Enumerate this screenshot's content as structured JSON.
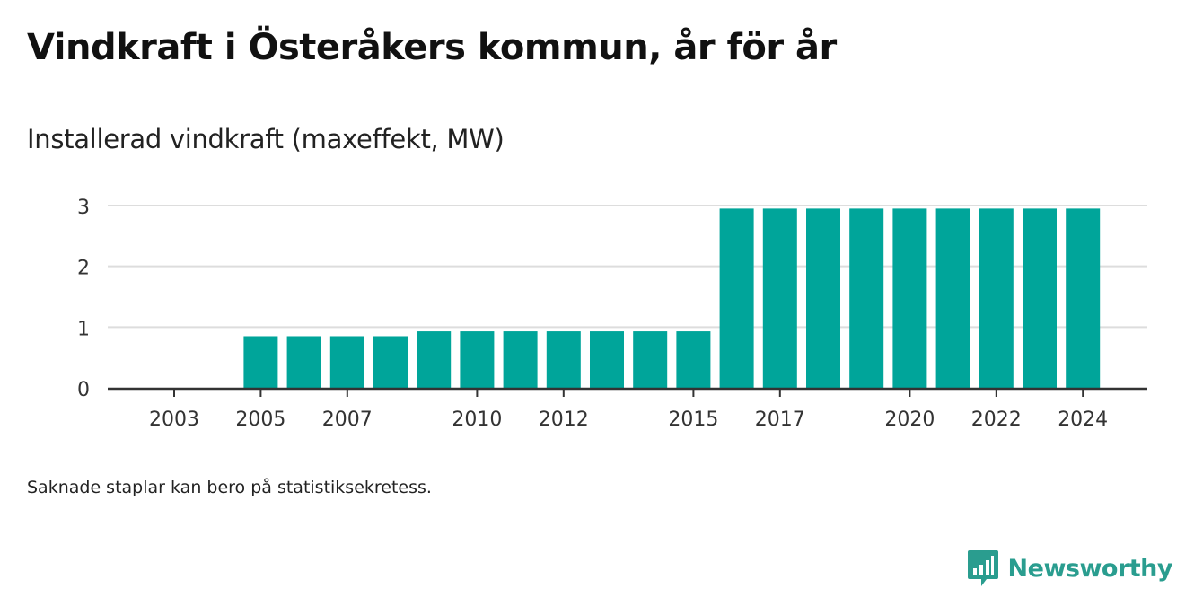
{
  "header": {
    "title": "Vindkraft i Österåkers kommun, år för år",
    "subtitle": "Installerad vindkraft (maxeffekt, MW)"
  },
  "footer": {
    "note": "Saknade staplar kan bero på statistiksekretess.",
    "brand": "Newsworthy",
    "brand_icon": "bar-chart-speech-bubble-icon"
  },
  "colors": {
    "bar": "#00a59a",
    "grid": "#dddddd",
    "axis": "#333333",
    "brand": "#2a9d8f"
  },
  "chart_data": {
    "type": "bar",
    "categories": [
      "2003",
      "2004",
      "2005",
      "2006",
      "2007",
      "2008",
      "2009",
      "2010",
      "2011",
      "2012",
      "2013",
      "2014",
      "2015",
      "2016",
      "2017",
      "2018",
      "2019",
      "2020",
      "2021",
      "2022",
      "2023",
      "2024"
    ],
    "values": [
      null,
      null,
      0.85,
      0.85,
      0.85,
      0.85,
      0.93,
      0.93,
      0.93,
      0.93,
      0.93,
      0.93,
      0.93,
      2.95,
      2.95,
      2.95,
      2.95,
      2.95,
      2.95,
      2.95,
      2.95,
      2.95
    ],
    "tick_labels": [
      "2003",
      "2005",
      "2007",
      "2010",
      "2012",
      "2015",
      "2017",
      "2020",
      "2022",
      "2024"
    ],
    "yticks": [
      0,
      1,
      2,
      3
    ],
    "ylim": [
      0,
      3.1
    ],
    "title": "Vindkraft i Österåkers kommun, år för år",
    "subtitle": "Installerad vindkraft (maxeffekt, MW)",
    "xlabel": "",
    "ylabel": "",
    "grid": true,
    "legend": "none"
  }
}
